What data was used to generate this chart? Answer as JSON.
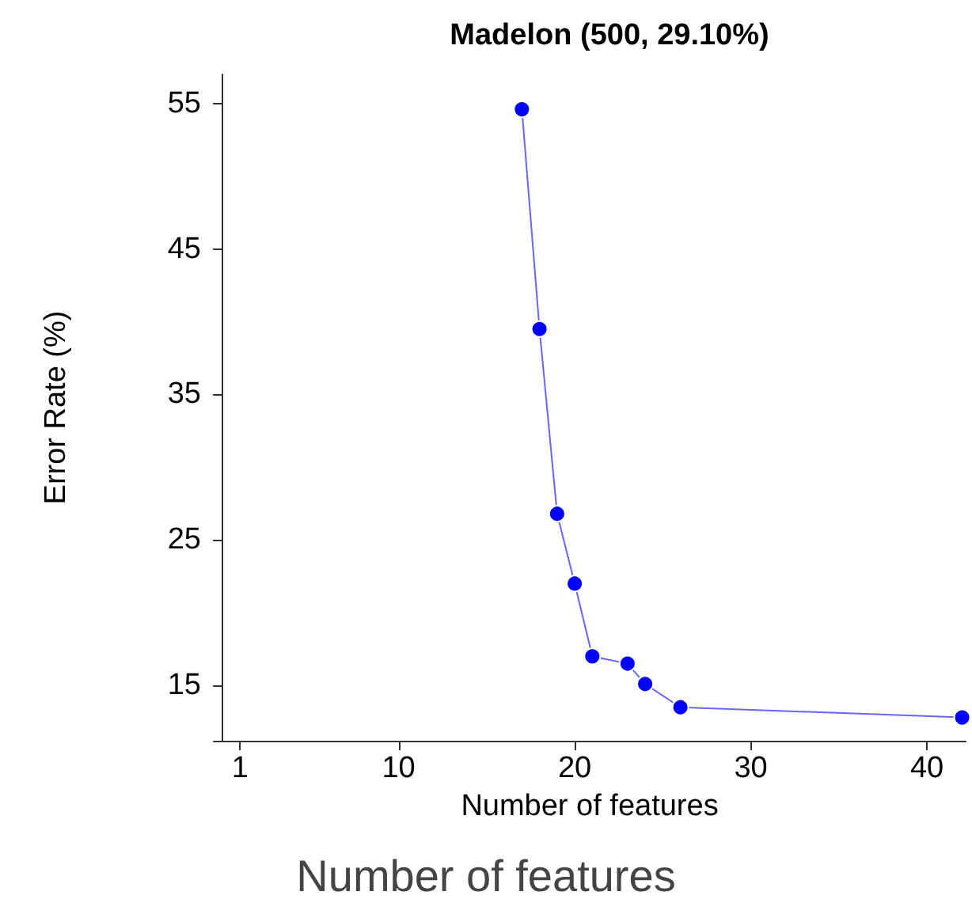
{
  "chart_data": {
    "type": "line",
    "title": "Madelon (500, 29.10%)",
    "xlabel": "Number of features",
    "ylabel": "Error Rate (%)",
    "x": [
      17,
      18,
      19,
      20,
      21,
      23,
      24,
      26,
      42
    ],
    "series": [
      {
        "color": "#0000ff",
        "values": [
          54.6,
          39.5,
          26.8,
          22,
          17,
          16.5,
          15.1,
          13.5,
          12.8
        ]
      }
    ],
    "xlim": [
      -0.5,
      42.2
    ],
    "xticks": [
      1,
      10,
      20,
      30,
      40
    ],
    "ylim": [
      11.2,
      57
    ],
    "yticks": [
      15,
      25,
      35,
      45,
      55
    ],
    "grid": false,
    "marker": "circle",
    "line_style": "solid",
    "annotations": [
      "Number of features"
    ]
  }
}
